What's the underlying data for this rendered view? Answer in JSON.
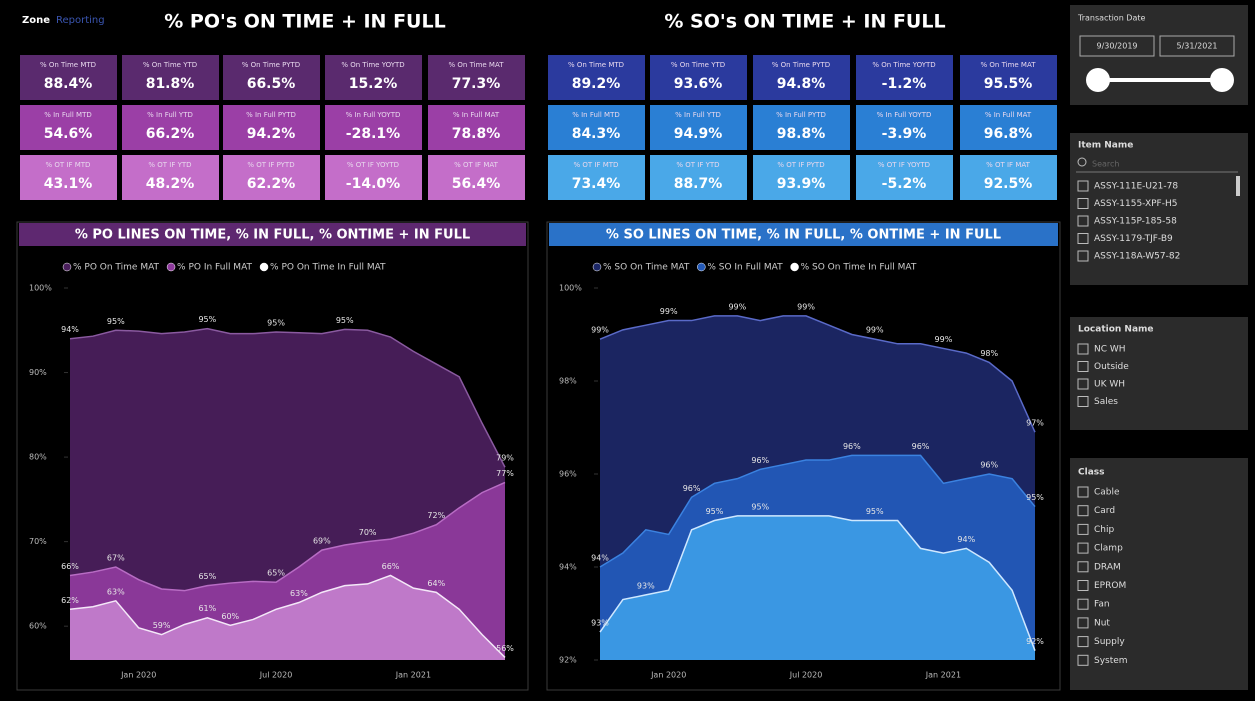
{
  "header": {
    "logo": "Zone",
    "logo_sub": "Reporting",
    "po_title": "% PO's ON TIME + IN FULL",
    "so_title": "% SO's ON TIME + IN FULL"
  },
  "kpis": {
    "po": [
      [
        {
          "label": "% On Time MTD",
          "value": "88.4%"
        },
        {
          "label": "% On Time YTD",
          "value": "81.8%"
        },
        {
          "label": "% On Time PYTD",
          "value": "66.5%"
        },
        {
          "label": "% On Time YOYTD",
          "value": "15.2%"
        },
        {
          "label": "% On Time MAT",
          "value": "77.3%"
        }
      ],
      [
        {
          "label": "% In Full MTD",
          "value": "54.6%"
        },
        {
          "label": "% In Full YTD",
          "value": "66.2%"
        },
        {
          "label": "% In Full PYTD",
          "value": "94.2%"
        },
        {
          "label": "% In Full YOYTD",
          "value": "-28.1%"
        },
        {
          "label": "% In Full MAT",
          "value": "78.8%"
        }
      ],
      [
        {
          "label": "% OT IF MTD",
          "value": "43.1%"
        },
        {
          "label": "% OT IF YTD",
          "value": "48.2%"
        },
        {
          "label": "% OT IF PYTD",
          "value": "62.2%"
        },
        {
          "label": "% OT IF YOYTD",
          "value": "-14.0%"
        },
        {
          "label": "% OT IF MAT",
          "value": "56.4%"
        }
      ]
    ],
    "so": [
      [
        {
          "label": "% On Time MTD",
          "value": "89.2%"
        },
        {
          "label": "% On Time YTD",
          "value": "93.6%"
        },
        {
          "label": "% On Time PYTD",
          "value": "94.8%"
        },
        {
          "label": "% On Time YOYTD",
          "value": "-1.2%"
        },
        {
          "label": "% On Time MAT",
          "value": "95.5%"
        }
      ],
      [
        {
          "label": "% In Full MTD",
          "value": "84.3%"
        },
        {
          "label": "% In Full YTD",
          "value": "94.9%"
        },
        {
          "label": "% In Full PYTD",
          "value": "98.8%"
        },
        {
          "label": "% In Full YOYTD",
          "value": "-3.9%"
        },
        {
          "label": "% In Full MAT",
          "value": "96.8%"
        }
      ],
      [
        {
          "label": "% OT IF MTD",
          "value": "73.4%"
        },
        {
          "label": "% OT IF YTD",
          "value": "88.7%"
        },
        {
          "label": "% OT IF PYTD",
          "value": "93.9%"
        },
        {
          "label": "% OT IF YOYTD",
          "value": "-5.2%"
        },
        {
          "label": "% OT IF MAT",
          "value": "92.5%"
        }
      ]
    ]
  },
  "chart_data": [
    {
      "type": "area",
      "title": "% PO LINES ON TIME, % IN FULL, % ONTIME + IN FULL",
      "categories": [
        null,
        null,
        null,
        "Jan 2020",
        null,
        null,
        null,
        null,
        null,
        "Jul 2020",
        null,
        null,
        null,
        null,
        null,
        "Jan 2021",
        null,
        null,
        null,
        null
      ],
      "ylim": [
        56,
        100
      ],
      "yticks": [
        {
          "value": 60,
          "label": "60%"
        },
        {
          "value": 70,
          "label": "70%"
        },
        {
          "value": 80,
          "label": "80%"
        },
        {
          "value": 90,
          "label": "90%"
        },
        {
          "value": 100,
          "label": "100%"
        }
      ],
      "series": [
        {
          "name": "% PO On Time MAT",
          "color": "#4a1f5c",
          "values": [
            94,
            94.3,
            95,
            94.9,
            94.6,
            94.8,
            95.2,
            94.6,
            94.6,
            94.8,
            94.7,
            94.6,
            95.1,
            95,
            94.2,
            92.5,
            91,
            89.5,
            84,
            78.8
          ],
          "value_labels": [
            "94%",
            null,
            "95%",
            null,
            null,
            null,
            "95%",
            null,
            null,
            "95%",
            null,
            null,
            "95%",
            null,
            null,
            null,
            null,
            null,
            null,
            "79%"
          ]
        },
        {
          "name": "% PO In Full MAT",
          "color": "#8e3a9c",
          "values": [
            66,
            66.4,
            67,
            65.5,
            64.4,
            64.2,
            64.8,
            65.1,
            65.3,
            65.2,
            67,
            69,
            69.6,
            70,
            70.3,
            71,
            72,
            74,
            75.8,
            77
          ],
          "value_labels": [
            "66%",
            null,
            "67%",
            null,
            null,
            null,
            "65%",
            null,
            null,
            "65%",
            null,
            "69%",
            null,
            "70%",
            null,
            null,
            "72%",
            null,
            null,
            "77%"
          ]
        },
        {
          "name": "% PO On Time In Full MAT",
          "color": "#c27ccb",
          "values": [
            62,
            62.3,
            63,
            59.8,
            59,
            60.2,
            61,
            60.1,
            60.8,
            62,
            62.8,
            64,
            64.8,
            65,
            66,
            64.5,
            64,
            62,
            59,
            56.3
          ],
          "value_labels": [
            "62%",
            null,
            "63%",
            null,
            "59%",
            null,
            "61%",
            "60%",
            null,
            null,
            "63%",
            null,
            null,
            null,
            "66%",
            null,
            "64%",
            null,
            null,
            "56%"
          ]
        }
      ]
    },
    {
      "type": "area",
      "title": "% SO LINES ON TIME, % IN FULL, % ONTIME + IN FULL",
      "categories": [
        null,
        null,
        null,
        "Jan 2020",
        null,
        null,
        null,
        null,
        null,
        "Jul 2020",
        null,
        null,
        null,
        null,
        null,
        "Jan 2021",
        null,
        null,
        null,
        null
      ],
      "ylim": [
        92,
        100
      ],
      "yticks": [
        {
          "value": 92,
          "label": "92%"
        },
        {
          "value": 94,
          "label": "94%"
        },
        {
          "value": 96,
          "label": "96%"
        },
        {
          "value": 98,
          "label": "98%"
        },
        {
          "value": 100,
          "label": "100%"
        }
      ],
      "series": [
        {
          "name": "% SO On Time MAT",
          "color": "#1c2766",
          "values": [
            98.9,
            99.1,
            99.2,
            99.3,
            99.3,
            99.4,
            99.4,
            99.3,
            99.4,
            99.4,
            99.2,
            99.0,
            98.9,
            98.8,
            98.8,
            98.7,
            98.6,
            98.4,
            98.0,
            96.9
          ],
          "value_labels": [
            "99%",
            null,
            null,
            "99%",
            null,
            null,
            "99%",
            null,
            null,
            "99%",
            null,
            null,
            "99%",
            null,
            null,
            "99%",
            null,
            "98%",
            null,
            "97%"
          ]
        },
        {
          "name": "% SO In Full MAT",
          "color": "#2359b8",
          "values": [
            94,
            94.3,
            94.8,
            94.7,
            95.5,
            95.8,
            95.9,
            96.1,
            96.2,
            96.3,
            96.3,
            96.4,
            96.4,
            96.4,
            96.4,
            95.8,
            95.9,
            96,
            95.9,
            95.3
          ],
          "value_labels": [
            "94%",
            null,
            null,
            null,
            "96%",
            null,
            null,
            "96%",
            null,
            null,
            null,
            "96%",
            null,
            null,
            "96%",
            null,
            null,
            "96%",
            null,
            "95%"
          ]
        },
        {
          "name": "% SO On Time In Full MAT",
          "color": "#3c9be6",
          "values": [
            92.6,
            93.3,
            93.4,
            93.5,
            94.8,
            95.0,
            95.1,
            95.1,
            95.1,
            95.1,
            95.1,
            95.0,
            95.0,
            95.0,
            94.4,
            94.3,
            94.4,
            94.1,
            93.5,
            92.2
          ],
          "value_labels": [
            "93%",
            null,
            "93%",
            null,
            null,
            "95%",
            null,
            "95%",
            null,
            null,
            null,
            null,
            "95%",
            null,
            null,
            null,
            "94%",
            null,
            null,
            "92%"
          ]
        }
      ]
    }
  ],
  "slicers": {
    "date": {
      "title": "Transaction Date",
      "start": "9/30/2019",
      "end": "5/31/2021"
    },
    "item": {
      "title": "Item Name",
      "search": "Search",
      "items": [
        "ASSY-111E-U21-78",
        "ASSY-1155-XPF-H5",
        "ASSY-115P-185-58",
        "ASSY-1179-TJF-B9",
        "ASSY-118A-W57-82"
      ]
    },
    "location": {
      "title": "Location Name",
      "items": [
        "NC WH",
        "Outside",
        "UK WH",
        "Sales"
      ]
    },
    "class": {
      "title": "Class",
      "items": [
        "Cable",
        "Card",
        "Chip",
        "Clamp",
        "DRAM",
        "EPROM",
        "Fan",
        "Nut",
        "Supply",
        "System"
      ]
    }
  }
}
